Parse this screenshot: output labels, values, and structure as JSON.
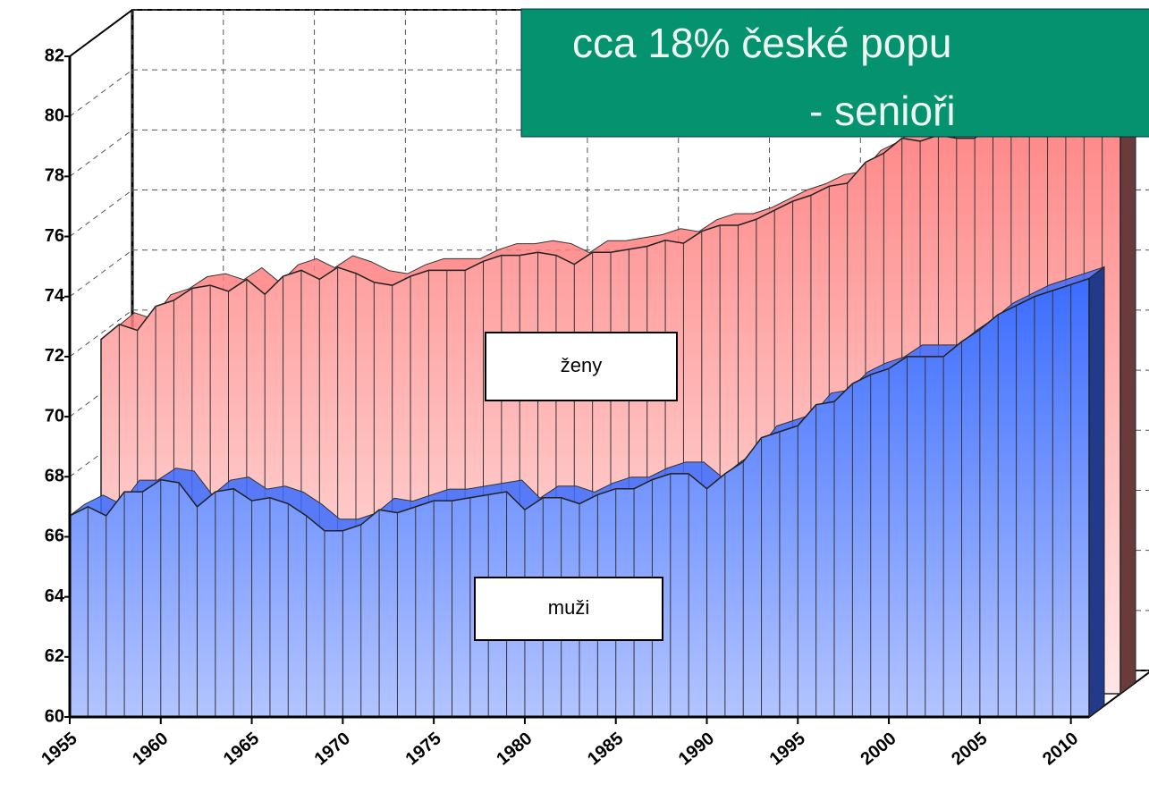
{
  "chart_data": {
    "type": "area",
    "x": [
      1955,
      1956,
      1957,
      1958,
      1959,
      1960,
      1961,
      1962,
      1963,
      1964,
      1965,
      1966,
      1967,
      1968,
      1969,
      1970,
      1971,
      1972,
      1973,
      1974,
      1975,
      1976,
      1977,
      1978,
      1979,
      1980,
      1981,
      1982,
      1983,
      1984,
      1985,
      1986,
      1987,
      1988,
      1989,
      1990,
      1991,
      1992,
      1993,
      1994,
      1995,
      1996,
      1997,
      1998,
      1999,
      2000,
      2001,
      2002,
      2003,
      2004,
      2005,
      2006,
      2007,
      2008,
      2009,
      2010,
      2011
    ],
    "series": [
      {
        "name": "ženy",
        "color": "#ff8080",
        "values": [
          71.8,
          72.3,
          72.1,
          72.9,
          73.1,
          73.5,
          73.6,
          73.4,
          73.8,
          73.3,
          73.9,
          74.1,
          73.8,
          74.2,
          74.0,
          73.7,
          73.6,
          73.9,
          74.1,
          74.1,
          74.1,
          74.4,
          74.6,
          74.6,
          74.7,
          74.6,
          74.3,
          74.7,
          74.7,
          74.8,
          74.9,
          75.1,
          75.0,
          75.4,
          75.6,
          75.6,
          75.8,
          76.1,
          76.4,
          76.6,
          76.9,
          77.0,
          77.7,
          78.0,
          78.5,
          78.4,
          78.6,
          78.5,
          78.5,
          79.0,
          79.1,
          79.7,
          79.9,
          80.1,
          80.1,
          80.6,
          80.7
        ]
      },
      {
        "name": "muži",
        "color": "#3b6cff",
        "values": [
          66.7,
          67.0,
          66.7,
          67.5,
          67.5,
          67.9,
          67.8,
          67.0,
          67.5,
          67.6,
          67.2,
          67.3,
          67.1,
          66.7,
          66.2,
          66.2,
          66.4,
          66.9,
          66.8,
          67.0,
          67.2,
          67.2,
          67.3,
          67.4,
          67.5,
          66.9,
          67.3,
          67.3,
          67.1,
          67.4,
          67.6,
          67.6,
          67.9,
          68.1,
          68.1,
          67.6,
          68.1,
          68.5,
          69.3,
          69.5,
          69.7,
          70.4,
          70.5,
          71.1,
          71.4,
          71.6,
          72.0,
          72.0,
          72.0,
          72.5,
          72.9,
          73.4,
          73.7,
          74.0,
          74.2,
          74.4,
          74.6
        ]
      }
    ],
    "xlim": [
      1955,
      2011
    ],
    "ylim": [
      60,
      82
    ],
    "xticks": [
      1955,
      1960,
      1965,
      1970,
      1975,
      1980,
      1985,
      1990,
      1995,
      2000,
      2005,
      2010
    ],
    "yticks": [
      60,
      62,
      64,
      66,
      68,
      70,
      72,
      74,
      76,
      78,
      80,
      82
    ],
    "grid": true,
    "annotation": [
      "cca 18% české popu",
      "- senioři"
    ]
  }
}
